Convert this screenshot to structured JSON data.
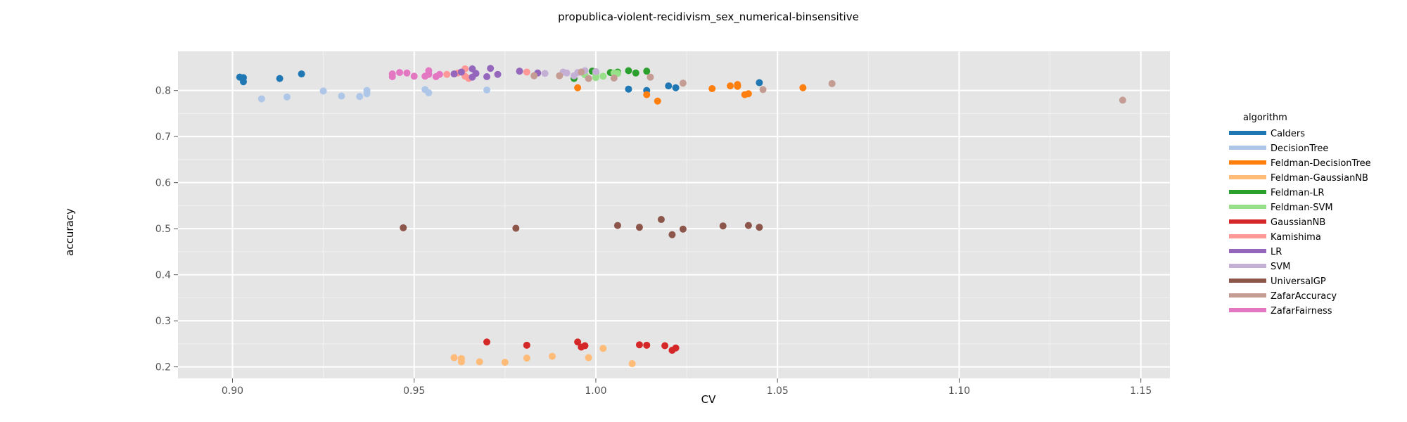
{
  "chart_data": {
    "type": "scatter",
    "title": "propublica-violent-recidivism_sex_numerical-binsensitive",
    "xlabel": "CV",
    "ylabel": "accuracy",
    "xlim": [
      0.885,
      1.158
    ],
    "ylim": [
      0.175,
      0.885
    ],
    "x_ticks": [
      0.9,
      0.95,
      1.0,
      1.05,
      1.1,
      1.15
    ],
    "x_tick_labels": [
      "0.90",
      "0.95",
      "1.00",
      "1.05",
      "1.10",
      "1.15"
    ],
    "y_ticks": [
      0.2,
      0.3,
      0.4,
      0.5,
      0.6,
      0.7,
      0.8
    ],
    "y_tick_labels": [
      "0.2",
      "0.3",
      "0.4",
      "0.5",
      "0.6",
      "0.7",
      "0.8"
    ],
    "grid": true,
    "legend": {
      "title": "algorithm",
      "placement": "right"
    },
    "series": [
      {
        "name": "Calders",
        "color": "#1f77b4",
        "points": [
          [
            0.902,
            0.829
          ],
          [
            0.903,
            0.828
          ],
          [
            0.903,
            0.819
          ],
          [
            0.913,
            0.826
          ],
          [
            0.919,
            0.836
          ],
          [
            1.009,
            0.803
          ],
          [
            1.014,
            0.8
          ],
          [
            1.02,
            0.81
          ],
          [
            1.022,
            0.806
          ],
          [
            1.045,
            0.817
          ]
        ]
      },
      {
        "name": "DecisionTree",
        "color": "#aec7e8",
        "points": [
          [
            0.908,
            0.782
          ],
          [
            0.915,
            0.786
          ],
          [
            0.925,
            0.799
          ],
          [
            0.93,
            0.788
          ],
          [
            0.935,
            0.787
          ],
          [
            0.937,
            0.793
          ],
          [
            0.937,
            0.8
          ],
          [
            0.953,
            0.802
          ],
          [
            0.954,
            0.795
          ],
          [
            0.97,
            0.801
          ]
        ]
      },
      {
        "name": "Feldman-DecisionTree",
        "color": "#ff7f0e",
        "points": [
          [
            0.995,
            0.806
          ],
          [
            1.014,
            0.791
          ],
          [
            1.017,
            0.777
          ],
          [
            1.032,
            0.804
          ],
          [
            1.037,
            0.81
          ],
          [
            1.039,
            0.813
          ],
          [
            1.039,
            0.809
          ],
          [
            1.041,
            0.791
          ],
          [
            1.042,
            0.793
          ],
          [
            1.057,
            0.806
          ]
        ]
      },
      {
        "name": "Feldman-GaussianNB",
        "color": "#ffbb78",
        "points": [
          [
            0.961,
            0.22
          ],
          [
            0.963,
            0.211
          ],
          [
            0.963,
            0.218
          ],
          [
            0.968,
            0.211
          ],
          [
            0.975,
            0.21
          ],
          [
            0.981,
            0.219
          ],
          [
            0.988,
            0.223
          ],
          [
            0.998,
            0.22
          ],
          [
            1.002,
            0.24
          ],
          [
            1.01,
            0.207
          ]
        ]
      },
      {
        "name": "Feldman-LR",
        "color": "#2ca02c",
        "points": [
          [
            0.994,
            0.826
          ],
          [
            0.999,
            0.842
          ],
          [
            1.0,
            0.838
          ],
          [
            1.004,
            0.839
          ],
          [
            1.006,
            0.84
          ],
          [
            1.009,
            0.843
          ],
          [
            1.011,
            0.838
          ],
          [
            1.014,
            0.842
          ]
        ]
      },
      {
        "name": "Feldman-SVM",
        "color": "#98df8a",
        "points": [
          [
            0.997,
            0.834
          ],
          [
            1.0,
            0.836
          ],
          [
            1.0,
            0.828
          ],
          [
            1.002,
            0.831
          ],
          [
            1.005,
            0.838
          ],
          [
            1.006,
            0.837
          ]
        ]
      },
      {
        "name": "GaussianNB",
        "color": "#d62728",
        "points": [
          [
            0.97,
            0.254
          ],
          [
            0.981,
            0.247
          ],
          [
            0.995,
            0.254
          ],
          [
            0.996,
            0.243
          ],
          [
            0.997,
            0.246
          ],
          [
            1.012,
            0.248
          ],
          [
            1.014,
            0.247
          ],
          [
            1.019,
            0.246
          ],
          [
            1.021,
            0.236
          ],
          [
            1.022,
            0.241
          ]
        ]
      },
      {
        "name": "Kamishima",
        "color": "#ff9896",
        "points": [
          [
            0.959,
            0.835
          ],
          [
            0.962,
            0.838
          ],
          [
            0.964,
            0.847
          ],
          [
            0.964,
            0.831
          ],
          [
            0.965,
            0.826
          ],
          [
            0.981,
            0.84
          ]
        ]
      },
      {
        "name": "LR",
        "color": "#9467bd",
        "points": [
          [
            0.961,
            0.836
          ],
          [
            0.963,
            0.84
          ],
          [
            0.966,
            0.847
          ],
          [
            0.966,
            0.829
          ],
          [
            0.967,
            0.837
          ],
          [
            0.97,
            0.83
          ],
          [
            0.971,
            0.848
          ],
          [
            0.973,
            0.835
          ],
          [
            0.979,
            0.842
          ],
          [
            0.984,
            0.838
          ]
        ]
      },
      {
        "name": "SVM",
        "color": "#c5b0d5",
        "points": [
          [
            0.986,
            0.837
          ],
          [
            0.991,
            0.84
          ],
          [
            0.992,
            0.838
          ],
          [
            0.994,
            0.832
          ],
          [
            0.995,
            0.839
          ],
          [
            0.997,
            0.843
          ],
          [
            1.0,
            0.841
          ]
        ]
      },
      {
        "name": "UniversalGP",
        "color": "#8c564b",
        "points": [
          [
            0.947,
            0.502
          ],
          [
            0.978,
            0.501
          ],
          [
            1.006,
            0.507
          ],
          [
            1.012,
            0.503
          ],
          [
            1.018,
            0.52
          ],
          [
            1.021,
            0.487
          ],
          [
            1.024,
            0.499
          ],
          [
            1.035,
            0.506
          ],
          [
            1.042,
            0.507
          ],
          [
            1.045,
            0.503
          ]
        ]
      },
      {
        "name": "ZafarAccuracy",
        "color": "#c49c94",
        "points": [
          [
            0.983,
            0.832
          ],
          [
            0.99,
            0.832
          ],
          [
            0.996,
            0.84
          ],
          [
            0.998,
            0.826
          ],
          [
            1.005,
            0.827
          ],
          [
            1.015,
            0.829
          ],
          [
            1.024,
            0.816
          ],
          [
            1.046,
            0.802
          ],
          [
            1.065,
            0.815
          ],
          [
            1.145,
            0.779
          ]
        ]
      },
      {
        "name": "ZafarFairness",
        "color": "#e377c2",
        "points": [
          [
            0.944,
            0.83
          ],
          [
            0.944,
            0.836
          ],
          [
            0.946,
            0.839
          ],
          [
            0.948,
            0.838
          ],
          [
            0.95,
            0.831
          ],
          [
            0.953,
            0.831
          ],
          [
            0.954,
            0.835
          ],
          [
            0.954,
            0.843
          ],
          [
            0.956,
            0.83
          ],
          [
            0.957,
            0.835
          ]
        ]
      }
    ]
  }
}
